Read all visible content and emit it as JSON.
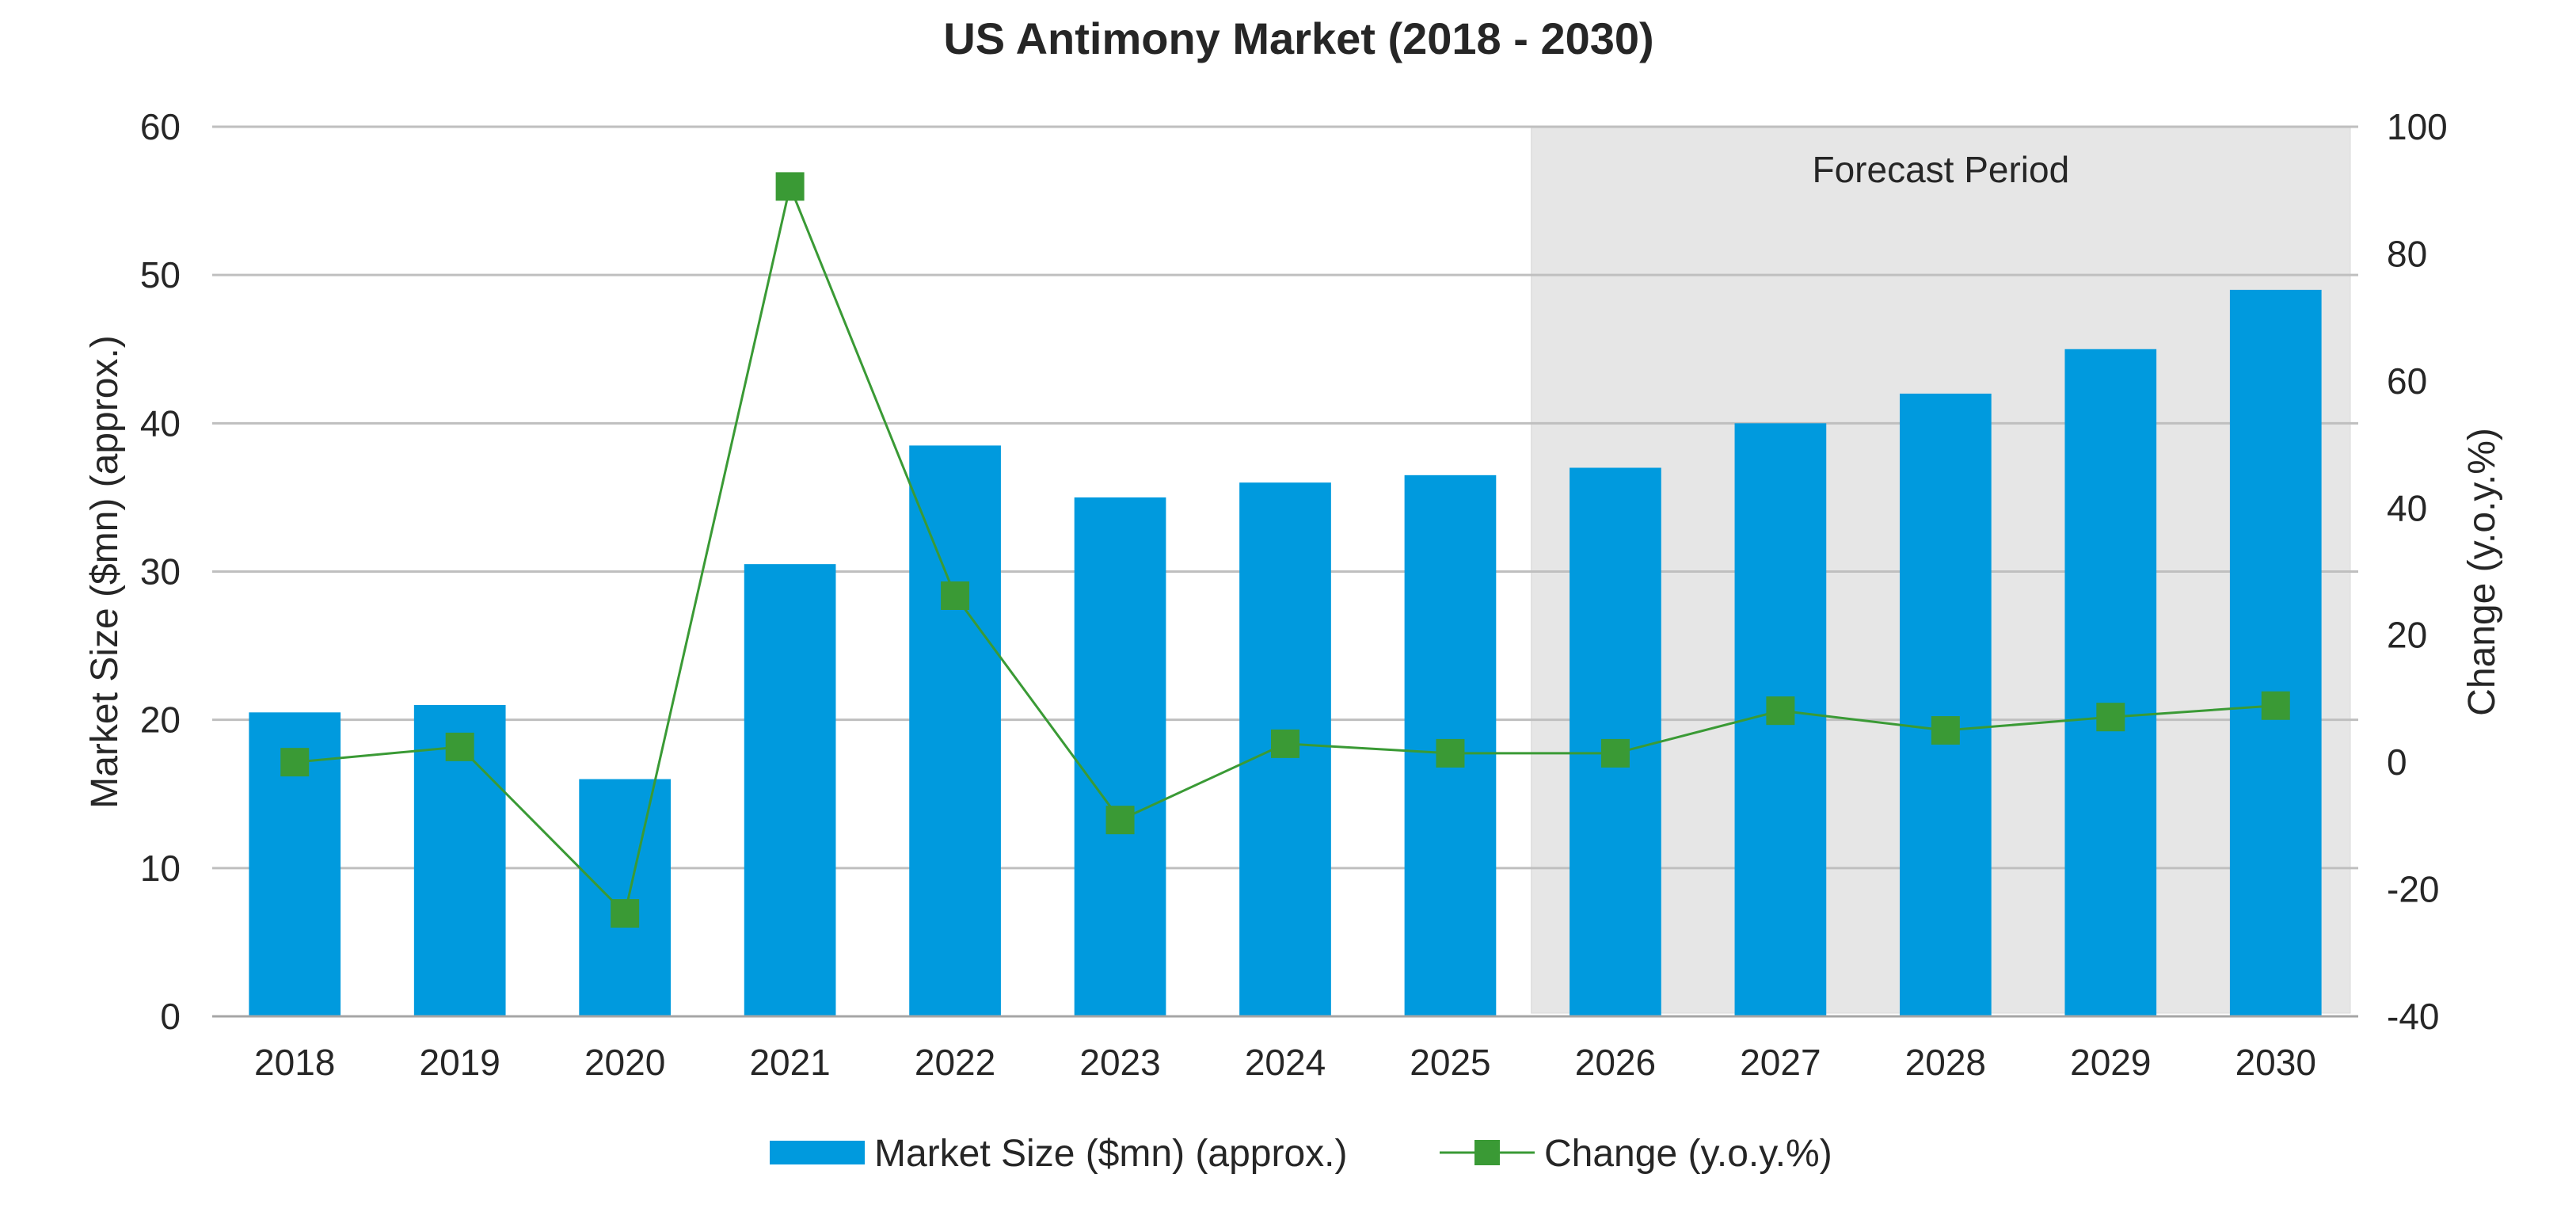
{
  "chart_data": {
    "type": "bar",
    "title": "US Antimony Market (2018 - 2030)",
    "categories": [
      "2018",
      "2019",
      "2020",
      "2021",
      "2022",
      "2023",
      "2024",
      "2025",
      "2026",
      "2027",
      "2028",
      "2029",
      "2030"
    ],
    "series": [
      {
        "name": "Market Size ($mn) (approx.)",
        "type": "bar",
        "axis": "left",
        "color": "#009ADE",
        "values": [
          20.5,
          21,
          16,
          30.5,
          38.5,
          35,
          36,
          36.5,
          37,
          40,
          42,
          45,
          49
        ]
      },
      {
        "name": "Change (y.o.y.%)",
        "type": "line",
        "axis": "right",
        "color": "#3A9A35",
        "marker": "square",
        "values": [
          0,
          2.4,
          -23.8,
          90.6,
          26.2,
          -9.1,
          2.9,
          1.4,
          1.4,
          8.1,
          5.0,
          7.1,
          8.9
        ]
      }
    ],
    "ylabel": "Market Size ($mn) (approx.)",
    "ylabel_right": "Change (y.o.y.%)",
    "ylim": [
      0,
      60
    ],
    "yticks": [
      "0",
      "10",
      "20",
      "30",
      "40",
      "50",
      "60"
    ],
    "ylim_right": [
      -40,
      100
    ],
    "yticks_right": [
      "-40",
      "-20",
      "0",
      "20",
      "40",
      "60",
      "80",
      "100"
    ],
    "grid": true,
    "legend_position": "bottom",
    "forecast": {
      "label": "Forecast Period",
      "start_category": "2026",
      "end_category": "2030",
      "color": "#E6E6E6"
    }
  }
}
